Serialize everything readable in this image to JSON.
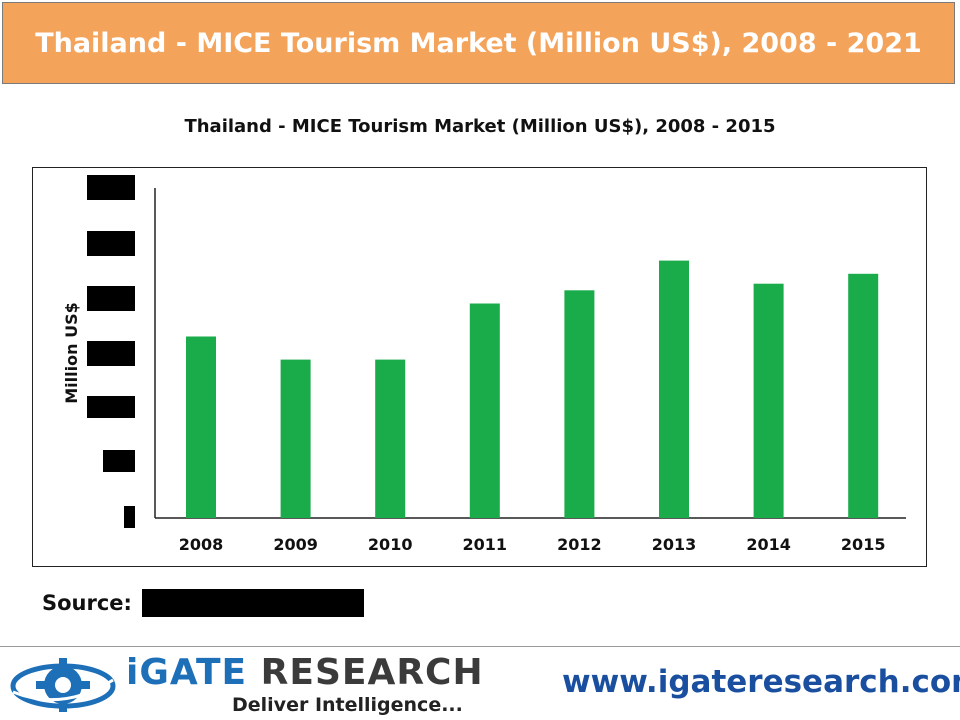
{
  "banner": {
    "title": "Thailand - MICE Tourism Market (Million US$), 2008 - 2021"
  },
  "chart_data": {
    "type": "bar",
    "title": "Thailand - MICE Tourism Market (Million US$), 2008 - 2015",
    "xlabel": "",
    "ylabel": "Million US$",
    "categories": [
      "2008",
      "2009",
      "2010",
      "2011",
      "2012",
      "2013",
      "2014",
      "2015"
    ],
    "values": [
      0.55,
      0.48,
      0.48,
      0.65,
      0.69,
      0.78,
      0.71,
      0.74
    ],
    "ylim": [
      0,
      1
    ],
    "y_tick_labels_redacted": true,
    "bar_color": "#1aab4b",
    "grid": false,
    "legend": "none"
  },
  "source": {
    "label": "Source:"
  },
  "footer": {
    "brand_prefix": "iGATE",
    "brand_suffix": " RESEARCH",
    "tagline": "Deliver Intelligence...",
    "website": "www.igateresearch.com"
  },
  "colors": {
    "banner": "#f4a35a",
    "bar": "#1aab4b",
    "website": "#1a4fa0",
    "logo_blue": "#1d6fb8"
  }
}
